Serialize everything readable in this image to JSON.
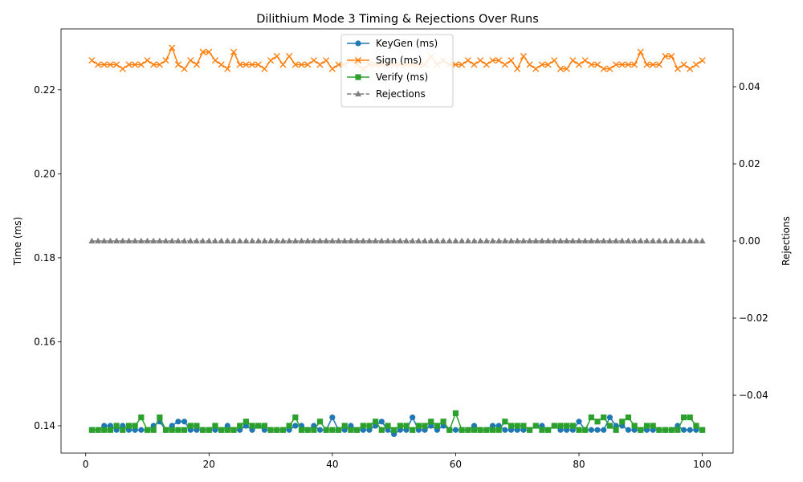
{
  "chart_data": {
    "type": "line",
    "title": "Dilithium Mode 3 Timing & Rejections Over Runs",
    "xlabel": "",
    "ylabel": "Time (ms)",
    "y2label": "Rejections",
    "xlim": [
      -4,
      105
    ],
    "ylim": [
      0.1335,
      0.2345
    ],
    "y2lim": [
      -0.055,
      0.055
    ],
    "xticks": [
      0,
      20,
      40,
      60,
      80,
      100
    ],
    "yticks": [
      0.14,
      0.16,
      0.18,
      0.2,
      0.22
    ],
    "ytick_labels": [
      "0.14",
      "0.16",
      "0.18",
      "0.20",
      "0.22"
    ],
    "y2ticks": [
      -0.04,
      -0.02,
      0.0,
      0.02,
      0.04
    ],
    "y2tick_labels": [
      "−0.04",
      "−0.02",
      "0.00",
      "0.02",
      "0.04"
    ],
    "grid": false,
    "legend_position": "upper-center",
    "x": [
      1,
      2,
      3,
      4,
      5,
      6,
      7,
      8,
      9,
      10,
      11,
      12,
      13,
      14,
      15,
      16,
      17,
      18,
      19,
      20,
      21,
      22,
      23,
      24,
      25,
      26,
      27,
      28,
      29,
      30,
      31,
      32,
      33,
      34,
      35,
      36,
      37,
      38,
      39,
      40,
      41,
      42,
      43,
      44,
      45,
      46,
      47,
      48,
      49,
      50,
      51,
      52,
      53,
      54,
      55,
      56,
      57,
      58,
      59,
      60,
      61,
      62,
      63,
      64,
      65,
      66,
      67,
      68,
      69,
      70,
      71,
      72,
      73,
      74,
      75,
      76,
      77,
      78,
      79,
      80,
      81,
      82,
      83,
      84,
      85,
      86,
      87,
      88,
      89,
      90,
      91,
      92,
      93,
      94,
      95,
      96,
      97,
      98,
      99,
      100
    ],
    "series": [
      {
        "name": "KeyGen (ms)",
        "axis": "left",
        "color": "#1f77b4",
        "marker": "circle",
        "dash": false,
        "values": [
          0.139,
          0.139,
          0.14,
          0.14,
          0.139,
          0.14,
          0.139,
          0.139,
          0.139,
          0.139,
          0.14,
          0.141,
          0.139,
          0.14,
          0.141,
          0.141,
          0.139,
          0.139,
          0.139,
          0.139,
          0.139,
          0.139,
          0.14,
          0.139,
          0.139,
          0.14,
          0.139,
          0.14,
          0.139,
          0.139,
          0.139,
          0.139,
          0.139,
          0.14,
          0.14,
          0.139,
          0.14,
          0.139,
          0.139,
          0.142,
          0.139,
          0.139,
          0.14,
          0.139,
          0.139,
          0.139,
          0.14,
          0.141,
          0.139,
          0.138,
          0.139,
          0.139,
          0.142,
          0.139,
          0.139,
          0.14,
          0.139,
          0.14,
          0.139,
          0.139,
          0.139,
          0.139,
          0.14,
          0.139,
          0.139,
          0.14,
          0.14,
          0.139,
          0.139,
          0.139,
          0.139,
          0.139,
          0.14,
          0.14,
          0.139,
          0.14,
          0.139,
          0.139,
          0.139,
          0.141,
          0.139,
          0.139,
          0.139,
          0.139,
          0.142,
          0.14,
          0.14,
          0.139,
          0.139,
          0.139,
          0.139,
          0.139,
          0.139,
          0.139,
          0.139,
          0.14,
          0.139,
          0.139,
          0.139,
          0.139
        ]
      },
      {
        "name": "Sign (ms)",
        "axis": "left",
        "color": "#ff7f0e",
        "marker": "x",
        "dash": false,
        "values": [
          0.227,
          0.226,
          0.226,
          0.226,
          0.226,
          0.225,
          0.226,
          0.226,
          0.226,
          0.227,
          0.226,
          0.226,
          0.227,
          0.23,
          0.226,
          0.225,
          0.227,
          0.226,
          0.229,
          0.229,
          0.227,
          0.226,
          0.225,
          0.229,
          0.226,
          0.226,
          0.226,
          0.226,
          0.225,
          0.227,
          0.228,
          0.226,
          0.228,
          0.226,
          0.226,
          0.226,
          0.227,
          0.226,
          0.227,
          0.225,
          0.226,
          0.226,
          0.227,
          0.226,
          0.225,
          0.226,
          0.226,
          0.226,
          0.226,
          0.226,
          0.226,
          0.226,
          0.226,
          0.226,
          0.226,
          0.228,
          0.226,
          0.227,
          0.226,
          0.226,
          0.226,
          0.227,
          0.226,
          0.227,
          0.226,
          0.227,
          0.227,
          0.226,
          0.227,
          0.225,
          0.228,
          0.226,
          0.225,
          0.226,
          0.226,
          0.227,
          0.225,
          0.225,
          0.227,
          0.226,
          0.227,
          0.226,
          0.226,
          0.225,
          0.225,
          0.226,
          0.226,
          0.226,
          0.226,
          0.229,
          0.226,
          0.226,
          0.226,
          0.228,
          0.228,
          0.225,
          0.226,
          0.225,
          0.226,
          0.227
        ]
      },
      {
        "name": "Verify (ms)",
        "axis": "left",
        "color": "#2ca02c",
        "marker": "square",
        "dash": false,
        "values": [
          0.139,
          0.139,
          0.139,
          0.139,
          0.14,
          0.139,
          0.14,
          0.14,
          0.142,
          0.139,
          0.139,
          0.142,
          0.139,
          0.139,
          0.139,
          0.139,
          0.14,
          0.14,
          0.139,
          0.139,
          0.14,
          0.139,
          0.139,
          0.139,
          0.14,
          0.141,
          0.14,
          0.14,
          0.14,
          0.139,
          0.139,
          0.139,
          0.14,
          0.142,
          0.139,
          0.139,
          0.139,
          0.141,
          0.139,
          0.139,
          0.139,
          0.14,
          0.139,
          0.139,
          0.14,
          0.14,
          0.141,
          0.139,
          0.14,
          0.139,
          0.14,
          0.14,
          0.139,
          0.14,
          0.14,
          0.141,
          0.14,
          0.141,
          0.139,
          0.143,
          0.139,
          0.139,
          0.139,
          0.139,
          0.139,
          0.139,
          0.139,
          0.141,
          0.14,
          0.14,
          0.14,
          0.139,
          0.14,
          0.139,
          0.139,
          0.14,
          0.14,
          0.14,
          0.14,
          0.139,
          0.139,
          0.142,
          0.141,
          0.142,
          0.14,
          0.139,
          0.141,
          0.142,
          0.14,
          0.139,
          0.14,
          0.14,
          0.139,
          0.139,
          0.139,
          0.139,
          0.142,
          0.142,
          0.14,
          0.139
        ]
      },
      {
        "name": "Rejections",
        "axis": "right",
        "color": "#7f7f7f",
        "marker": "triangle",
        "dash": true,
        "values": [
          0,
          0,
          0,
          0,
          0,
          0,
          0,
          0,
          0,
          0,
          0,
          0,
          0,
          0,
          0,
          0,
          0,
          0,
          0,
          0,
          0,
          0,
          0,
          0,
          0,
          0,
          0,
          0,
          0,
          0,
          0,
          0,
          0,
          0,
          0,
          0,
          0,
          0,
          0,
          0,
          0,
          0,
          0,
          0,
          0,
          0,
          0,
          0,
          0,
          0,
          0,
          0,
          0,
          0,
          0,
          0,
          0,
          0,
          0,
          0,
          0,
          0,
          0,
          0,
          0,
          0,
          0,
          0,
          0,
          0,
          0,
          0,
          0,
          0,
          0,
          0,
          0,
          0,
          0,
          0,
          0,
          0,
          0,
          0,
          0,
          0,
          0,
          0,
          0,
          0,
          0,
          0,
          0,
          0,
          0,
          0,
          0,
          0,
          0,
          0
        ]
      }
    ]
  }
}
